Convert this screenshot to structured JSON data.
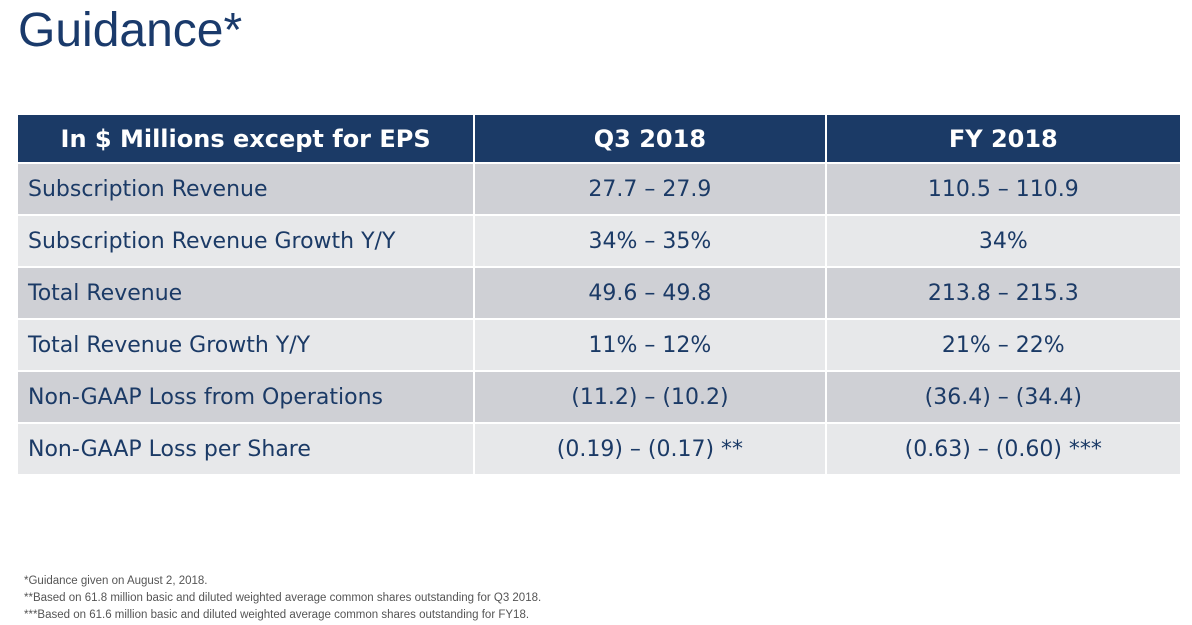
{
  "page": {
    "title": "Guidance*"
  },
  "table": {
    "headers": [
      "In $ Millions except for EPS",
      "Q3 2018",
      "FY 2018"
    ],
    "rows": [
      [
        "Subscription Revenue",
        "27.7 – 27.9",
        "110.5 – 110.9"
      ],
      [
        "Subscription Revenue Growth Y/Y",
        "34% – 35%",
        "34%"
      ],
      [
        "Total Revenue",
        "49.6 – 49.8",
        "213.8 – 215.3"
      ],
      [
        "Total Revenue Growth Y/Y",
        "11% – 12%",
        "21% – 22%"
      ],
      [
        "Non-GAAP Loss from Operations",
        "(11.2) – (10.2)",
        "(36.4) – (34.4)"
      ],
      [
        "Non-GAAP Loss per Share",
        "(0.19) – (0.17) **",
        "(0.63) – (0.60) ***"
      ]
    ]
  },
  "footnotes": [
    "*Guidance given on August 2, 2018.",
    "**Based on 61.8 million basic and diluted weighted average common shares outstanding for Q3 2018.",
    "***Based on 61.6 million basic and diluted weighted average common shares outstanding for FY18."
  ],
  "colors": {
    "header_bg": "#1b3a66",
    "row_odd": "#cfd0d5",
    "row_even": "#e7e8ea",
    "title": "#1a3a6b"
  }
}
